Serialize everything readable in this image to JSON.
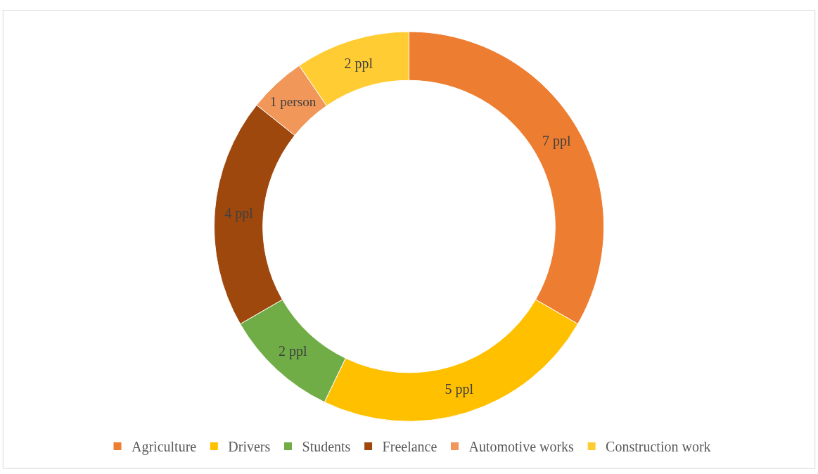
{
  "chart_data": {
    "type": "donut",
    "categories": [
      "Agriculture",
      "Drivers",
      "Students",
      "Freelance",
      "Automotive works",
      "Construction work"
    ],
    "values": [
      7,
      5,
      2,
      4,
      1,
      2
    ],
    "colors": [
      "#ed7d31",
      "#ffc000",
      "#70ad47",
      "#9e480e",
      "#f1975a",
      "#ffcd33"
    ],
    "value_labels": [
      "7 ppl",
      "5 ppl",
      "2 ppl",
      "4 ppl",
      "1 person",
      "2 ppl"
    ],
    "legend": "bottom"
  }
}
